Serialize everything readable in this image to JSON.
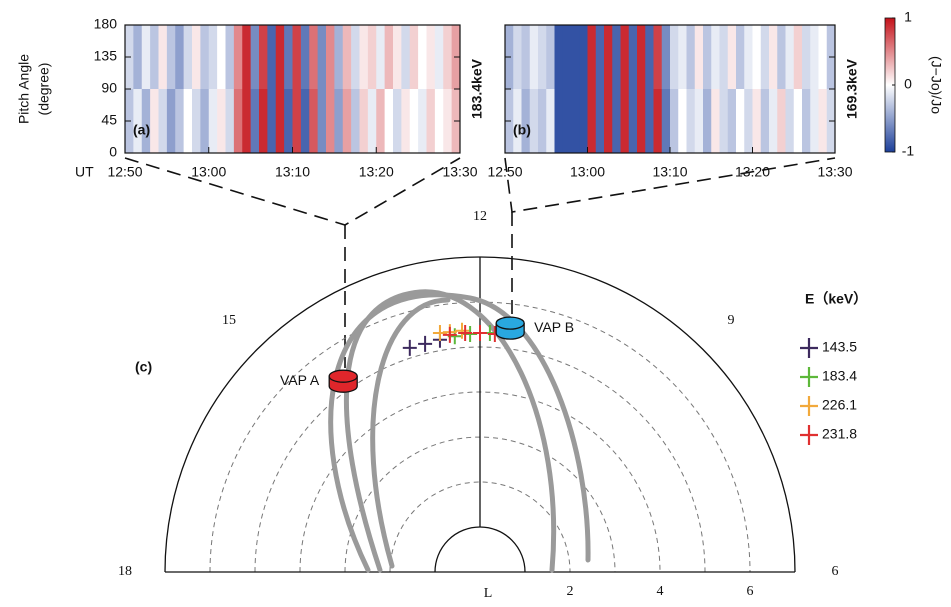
{
  "chart_data": [
    {
      "type": "heatmap",
      "panel_label": "(a)",
      "energy_label": "183.4keV",
      "ylabel": [
        "Pitch Angle",
        "(degree)"
      ],
      "xlabel": "UT",
      "x": [
        "12:50",
        "12:51",
        "12:52",
        "12:53",
        "12:54",
        "12:55",
        "12:56",
        "12:57",
        "12:58",
        "12:59",
        "13:00",
        "13:01",
        "13:02",
        "13:03",
        "13:04",
        "13:05",
        "13:06",
        "13:07",
        "13:08",
        "13:09",
        "13:10",
        "13:11",
        "13:12",
        "13:13",
        "13:14",
        "13:15",
        "13:16",
        "13:17",
        "13:18",
        "13:19",
        "13:20",
        "13:21",
        "13:22",
        "13:23",
        "13:24",
        "13:25",
        "13:26",
        "13:27",
        "13:28",
        "13:29"
      ],
      "ybins": [
        0,
        90,
        180
      ],
      "values": [
        [
          -0.3,
          -0.1,
          -0.4,
          0.1,
          -0.2,
          -0.5,
          -0.3,
          0,
          -0.2,
          -0.4,
          -0.1,
          0.1,
          -0.2,
          0.6,
          0.9,
          -0.7,
          0.9,
          -0.8,
          0.9,
          -0.8,
          0.8,
          -0.8,
          0.7,
          -0.6,
          0.5,
          -0.5,
          0.4,
          -0.3,
          0.2,
          -0.1,
          0.3,
          0,
          -0.2,
          0.1,
          0,
          -0.1,
          0.2,
          0,
          0.1,
          0.3
        ],
        [
          -0.2,
          -0.4,
          -0.1,
          -0.3,
          0.1,
          -0.3,
          -0.5,
          -0.2,
          0.1,
          -0.3,
          -0.2,
          0,
          -0.3,
          0.5,
          0.9,
          -0.6,
          0.8,
          -0.8,
          0.9,
          -0.7,
          0.8,
          -0.7,
          0.6,
          -0.6,
          0.5,
          -0.4,
          0.3,
          -0.2,
          0.1,
          0.2,
          -0.1,
          0.3,
          0.1,
          -0.2,
          0.2,
          0,
          0.1,
          -0.1,
          0.2,
          0.4
        ]
      ],
      "xlim": [
        "12:50",
        "13:30"
      ],
      "xticks": [
        "12:50",
        "13:00",
        "13:10",
        "13:20",
        "13:30"
      ],
      "ylim": [
        0,
        180
      ],
      "yticks": [
        0,
        45,
        90,
        135,
        180
      ],
      "ytick_labels": true,
      "colorscale": [
        "#1c3f9a",
        "#ffffff",
        "#c4121a"
      ],
      "zlim": [
        -1,
        1
      ]
    },
    {
      "type": "heatmap",
      "panel_label": "(b)",
      "energy_label": "169.3keV",
      "x": [
        "12:50",
        "12:51",
        "12:52",
        "12:53",
        "12:54",
        "12:55",
        "12:56",
        "12:57",
        "12:58",
        "12:59",
        "13:00",
        "13:01",
        "13:02",
        "13:03",
        "13:04",
        "13:05",
        "13:06",
        "13:07",
        "13:08",
        "13:09",
        "13:10",
        "13:11",
        "13:12",
        "13:13",
        "13:14",
        "13:15",
        "13:16",
        "13:17",
        "13:18",
        "13:19",
        "13:20",
        "13:21",
        "13:22",
        "13:23",
        "13:24",
        "13:25",
        "13:26",
        "13:27",
        "13:28",
        "13:29"
      ],
      "ybins": [
        0,
        90,
        180
      ],
      "values": [
        [
          -0.3,
          -0.1,
          -0.4,
          -0.2,
          -0.3,
          -0.1,
          -0.9,
          -0.9,
          -0.9,
          -0.9,
          0.9,
          -0.8,
          0.9,
          -0.8,
          0.9,
          -0.8,
          0.9,
          -0.8,
          0.9,
          -0.7,
          -0.3,
          0,
          -0.2,
          -0.1,
          -0.4,
          0.1,
          -0.2,
          -0.3,
          0,
          -0.2,
          0.1,
          -0.3,
          -0.1,
          0.2,
          -0.2,
          0,
          -0.3,
          -0.1,
          0.1,
          -0.2
        ],
        [
          -0.4,
          -0.2,
          -0.3,
          -0.1,
          -0.2,
          -0.3,
          -0.9,
          -0.9,
          -0.9,
          -0.9,
          0.9,
          -0.8,
          0.9,
          -0.8,
          0.9,
          -0.8,
          0.9,
          -0.8,
          0.8,
          -0.6,
          -0.2,
          -0.1,
          -0.3,
          0.1,
          -0.3,
          -0.1,
          -0.2,
          0.1,
          -0.3,
          -0.1,
          0,
          -0.2,
          0.1,
          -0.3,
          -0.1,
          0.2,
          -0.2,
          -0.1,
          0,
          -0.3
        ]
      ],
      "xlim": [
        "12:50",
        "13:30"
      ],
      "xticks": [
        "12:50",
        "13:00",
        "13:10",
        "13:20",
        "13:30"
      ],
      "ylim": [
        0,
        180
      ],
      "yticks": [
        0,
        45,
        90,
        135,
        180
      ],
      "ytick_labels": false,
      "colorscale": [
        "#1c3f9a",
        "#ffffff",
        "#c4121a"
      ],
      "zlim": [
        -1,
        1
      ],
      "colorbar": {
        "label": "(J−Jo)/Jo",
        "ticks": [
          -1,
          0,
          1
        ]
      }
    },
    {
      "type": "polar",
      "panel_label": "(c)",
      "mlt_ticks": [
        12,
        15,
        9,
        18,
        6
      ],
      "rlim": [
        1,
        7
      ],
      "rgrid": [
        2,
        3,
        4,
        5,
        6
      ],
      "rticks": [
        2,
        4,
        6
      ],
      "rlabel": "L",
      "legend_title": "E（keV）",
      "series": [
        {
          "name": "143.5",
          "color": "#3d2a5e",
          "x": [
            -1.56,
            -1.22,
            -0.89
          ],
          "y": [
            4.98,
            5.07,
            5.16
          ]
        },
        {
          "name": "183.4",
          "color": "#5db83a",
          "x": [
            -0.56,
            -0.22,
            0.22
          ],
          "y": [
            5.24,
            5.29,
            5.31
          ]
        },
        {
          "name": "226.1",
          "color": "#f2a93b",
          "x": [
            -0.89,
            -0.67,
            -0.4
          ],
          "y": [
            5.31,
            5.33,
            5.36
          ]
        },
        {
          "name": "231.8",
          "color": "#e03030",
          "x": [
            -0.67,
            -0.33,
            0,
            0.33
          ],
          "y": [
            5.27,
            5.31,
            5.31,
            5.29
          ]
        }
      ],
      "satellites": [
        {
          "name": "VAP A",
          "color": "#e0262b",
          "x": -3.04,
          "y": 4.24
        },
        {
          "name": "VAP B",
          "color": "#29a8e0",
          "x": 0.67,
          "y": 5.42
        }
      ]
    }
  ]
}
